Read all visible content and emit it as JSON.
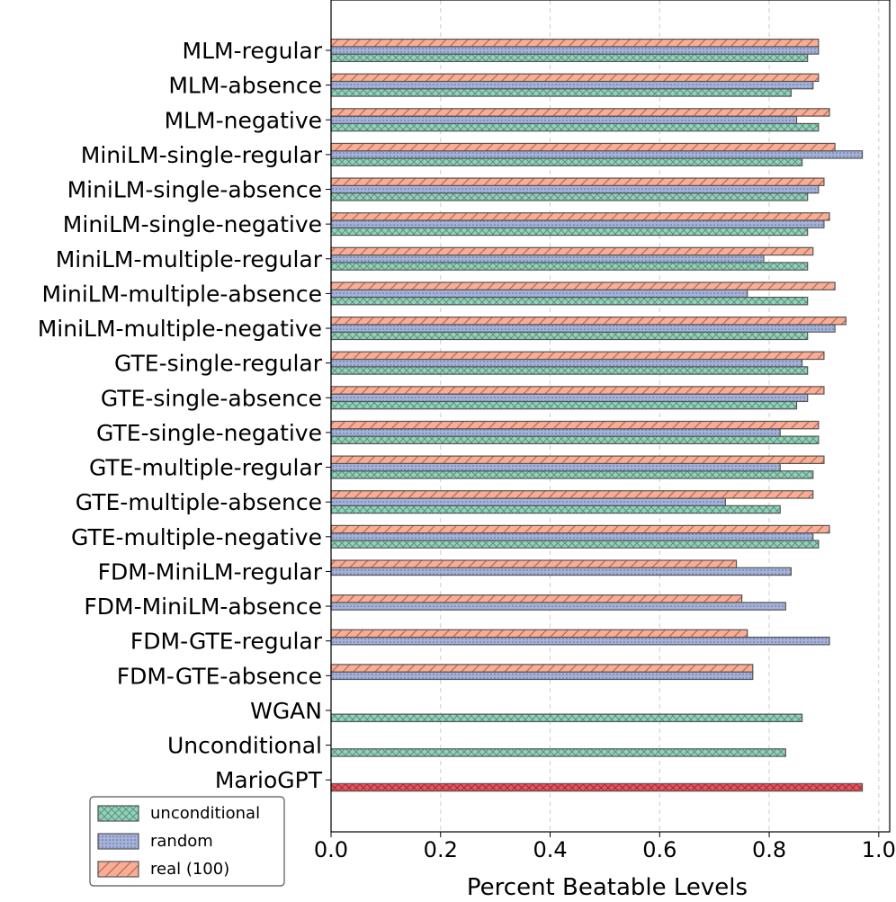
{
  "chart_data": {
    "type": "bar",
    "orientation": "horizontal",
    "title": "",
    "xlabel": "Percent Beatable Levels",
    "ylabel": "",
    "xlim": [
      0.0,
      1.02
    ],
    "xticks": [
      "0.0",
      "0.2",
      "0.4",
      "0.6",
      "0.8",
      "1.0"
    ],
    "grid": "vertical dashed",
    "legend_position": "bottom-left",
    "categories": [
      "MLM-regular",
      "MLM-absence",
      "MLM-negative",
      "MiniLM-single-regular",
      "MiniLM-single-absence",
      "MiniLM-single-negative",
      "MiniLM-multiple-regular",
      "MiniLM-multiple-absence",
      "MiniLM-multiple-negative",
      "GTE-single-regular",
      "GTE-single-absence",
      "GTE-single-negative",
      "GTE-multiple-regular",
      "GTE-multiple-absence",
      "GTE-multiple-negative",
      "FDM-MiniLM-regular",
      "FDM-MiniLM-absence",
      "FDM-GTE-regular",
      "FDM-GTE-absence",
      "WGAN",
      "Unconditional",
      "MarioGPT"
    ],
    "series": [
      {
        "name": "unconditional",
        "color": "#8fd3b9",
        "pattern": "crosshatch",
        "values": [
          0.87,
          0.84,
          0.89,
          0.86,
          0.87,
          0.87,
          0.87,
          0.87,
          0.87,
          0.87,
          0.85,
          0.89,
          0.88,
          0.82,
          0.89,
          null,
          null,
          null,
          null,
          0.86,
          0.83,
          null
        ]
      },
      {
        "name": "random",
        "color": "#a4b2d9",
        "pattern": "dots",
        "values": [
          0.89,
          0.88,
          0.85,
          0.97,
          0.89,
          0.9,
          0.79,
          0.76,
          0.92,
          0.86,
          0.87,
          0.82,
          0.82,
          0.72,
          0.88,
          0.84,
          0.83,
          0.91,
          0.77,
          null,
          null,
          null
        ]
      },
      {
        "name": "real (100)",
        "color": "#f9ad95",
        "pattern": "diagonal",
        "values": [
          0.89,
          0.89,
          0.91,
          0.92,
          0.9,
          0.91,
          0.88,
          0.92,
          0.94,
          0.9,
          0.9,
          0.89,
          0.9,
          0.88,
          0.91,
          0.74,
          0.75,
          0.76,
          0.77,
          null,
          null,
          null
        ]
      },
      {
        "name": "MarioGPT",
        "color": "#e8545e",
        "pattern": "crosshatch",
        "values": [
          null,
          null,
          null,
          null,
          null,
          null,
          null,
          null,
          null,
          null,
          null,
          null,
          null,
          null,
          null,
          null,
          null,
          null,
          null,
          null,
          null,
          0.97
        ]
      }
    ]
  },
  "legend": {
    "items": [
      {
        "label": "unconditional",
        "color": "#8fd3b9",
        "pattern": "crosshatch"
      },
      {
        "label": "random",
        "color": "#a4b2d9",
        "pattern": "dots"
      },
      {
        "label": "real (100)",
        "color": "#f9ad95",
        "pattern": "diagonal"
      }
    ]
  }
}
